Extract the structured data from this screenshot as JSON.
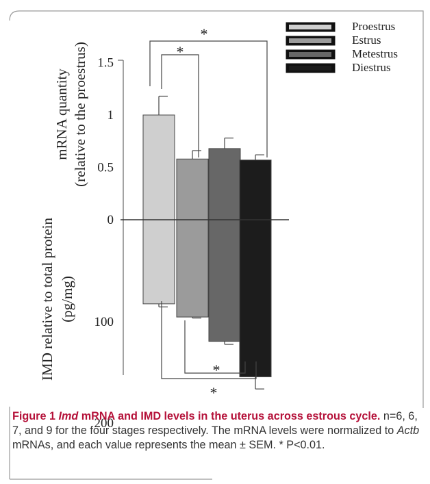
{
  "colors": {
    "proestrus": "#cfcfcf",
    "estrus": "#9b9b9b",
    "metestrus": "#676767",
    "diestrus": "#1c1c1c",
    "caption_lead": "#b5123a",
    "caption_text": "#333333"
  },
  "chart_data": {
    "type": "bar",
    "categories": [
      "Proestrus",
      "Estrus",
      "Metestrus",
      "Diestrus"
    ],
    "legend": {
      "entries": [
        "Proestrus",
        "Estrus",
        "Metestrus",
        "Diestrus"
      ],
      "placement": "top-right"
    },
    "top_panel": {
      "ylabel_line1": "mRNA quantity",
      "ylabel_line2": "(relative to the proestrus)",
      "ylim": [
        0,
        1.5
      ],
      "ticks": [
        "0",
        "0.5",
        "1",
        "1.5"
      ],
      "series": [
        {
          "values": [
            1.0,
            0.58,
            0.68,
            0.57
          ],
          "errors": [
            0.18,
            0.08,
            0.1,
            0.05
          ]
        }
      ],
      "significance": [
        {
          "from": 0,
          "to": 1,
          "label": "*"
        },
        {
          "from": 0,
          "to": 3,
          "label": "*"
        }
      ]
    },
    "bottom_panel": {
      "ylabel_line1": "IMD relative to total protein",
      "ylabel_line2": "(pg/mg)",
      "ylim": [
        0,
        200
      ],
      "ticks": [
        "100",
        "200"
      ],
      "series": [
        {
          "values": [
            83,
            96,
            120,
            155
          ],
          "errors": [
            3,
            1,
            3,
            12
          ]
        }
      ],
      "significance": [
        {
          "from": 1,
          "to": 3,
          "label": "*"
        },
        {
          "from": 0,
          "to": 3,
          "label": "*"
        }
      ]
    }
  },
  "caption": {
    "figure_label": "Figure 1",
    "title_italic": "Imd",
    "title_rest": " mRNA and IMD levels in the uterus across estrous cycle.",
    "text_part1": " n=6, 6, 7, and 9 for the four stages respectively. The mRNA levels were normalized to ",
    "gene_italic": "Actb",
    "text_part2": " mRNAs, and each value represents the mean ± SEM. * P<0.01."
  }
}
